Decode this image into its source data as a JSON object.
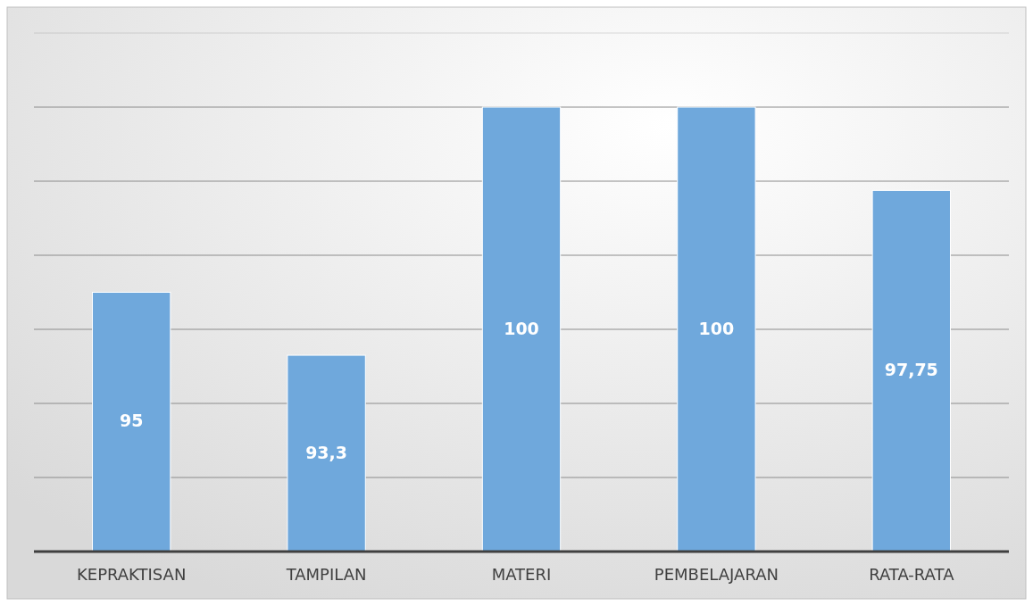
{
  "chart_data": {
    "type": "bar",
    "categories": [
      "KEPRAKTISAN",
      "TAMPILAN",
      "MATERI",
      "PEMBELAJARAN",
      "RATA-RATA"
    ],
    "values": [
      95,
      93.3,
      100,
      100,
      97.75
    ],
    "value_labels": [
      "95",
      "93,3",
      "100",
      "100",
      "97,75"
    ],
    "color": "#6fa8dc",
    "ylim": [
      88,
      102
    ],
    "yticks": [
      {
        "value": 88,
        "label": null
      },
      {
        "value": 90,
        "label": null
      },
      {
        "value": 92,
        "label": null
      },
      {
        "value": 94,
        "label": null
      },
      {
        "value": 96,
        "label": null
      },
      {
        "value": 98,
        "label": null
      },
      {
        "value": 100,
        "label": null
      },
      {
        "value": 102,
        "label": null
      }
    ],
    "tick_labels": "x",
    "grid": "y"
  }
}
